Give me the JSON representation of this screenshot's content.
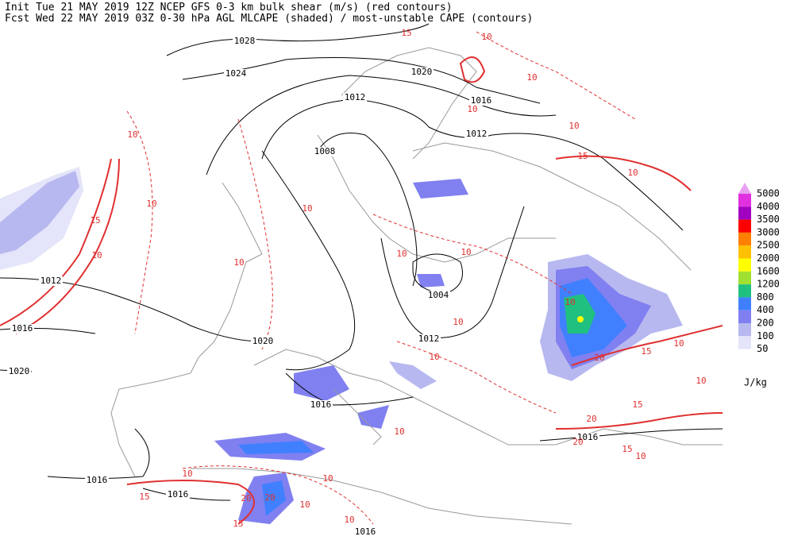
{
  "header": {
    "line1": "Init  Tue 21 MAY 2019 12Z  NCEP GFS 0-3 km bulk shear (m/s) (red contours)",
    "line2": "Fcst Wed 22 MAY 2019 03Z  0-30 hPa AGL MLCAPE (shaded) / most-unstable CAPE (contours)"
  },
  "legend": {
    "levels": [
      5000,
      4000,
      3500,
      3000,
      2500,
      2000,
      1600,
      1200,
      800,
      400,
      200,
      100,
      50
    ],
    "colors": [
      "#e8a0f0",
      "#e030e0",
      "#a000c0",
      "#ff0000",
      "#ff8000",
      "#ffc000",
      "#ffff00",
      "#a0e030",
      "#20c080",
      "#4080ff",
      "#8080f0",
      "#b8b8f0",
      "#e4e4fa"
    ],
    "unit": "J/kg"
  },
  "isobar_labels": [
    1028,
    1024,
    1020,
    1016,
    1012,
    1012,
    1008,
    1004,
    1012,
    1012,
    1016,
    1020,
    1020,
    1016,
    1016,
    1016,
    1016,
    1016
  ],
  "shear_labels": [
    15,
    10,
    10,
    10,
    10,
    15,
    10,
    10,
    10,
    15,
    10,
    10,
    10,
    10,
    10,
    10,
    10,
    15,
    20,
    10,
    10,
    10,
    15,
    20,
    10,
    20,
    15,
    10,
    10,
    10,
    15,
    20,
    15,
    10,
    20,
    10
  ]
}
